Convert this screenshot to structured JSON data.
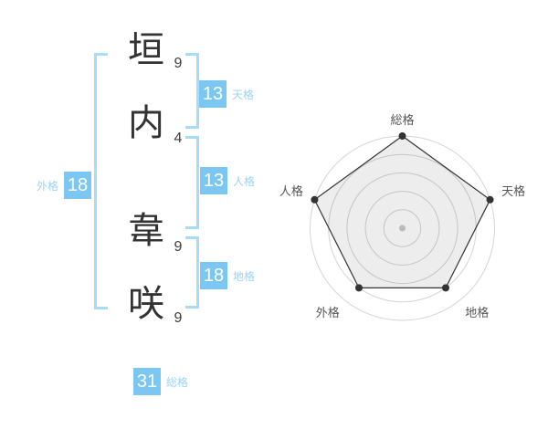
{
  "name": {
    "family": [
      {
        "char": "垣",
        "strokes": "9"
      },
      {
        "char": "内",
        "strokes": "4"
      }
    ],
    "given": [
      {
        "char": "韋",
        "strokes": "9"
      },
      {
        "char": "咲",
        "strokes": "9"
      }
    ]
  },
  "kaku": {
    "tenkaku": {
      "label": "天格",
      "value": "13"
    },
    "jinkaku": {
      "label": "人格",
      "value": "13"
    },
    "chikaku": {
      "label": "地格",
      "value": "18"
    },
    "gaikaku": {
      "label": "外格",
      "value": "18"
    },
    "soukaku": {
      "label": "総格",
      "value": "31"
    }
  },
  "colors": {
    "badge_blue": "#7cc7f1",
    "label_blue": "#9cd3f5",
    "bracket_blue": "#a8dbf8",
    "text_dark": "#333333",
    "chart_grid": "#d4d4d4",
    "chart_fill": "rgba(0,0,0,0.07)",
    "chart_line": "#333333",
    "chart_dot": "#333333",
    "chart_center_dot": "#bbbbbb",
    "chart_label": "#555555"
  },
  "chart_data": {
    "type": "radar",
    "categories": [
      "総格",
      "天格",
      "地格",
      "外格",
      "人格"
    ],
    "values": [
      5,
      5,
      4,
      4,
      5
    ],
    "max": 5,
    "rings": 5,
    "start_angle_deg": -90,
    "direction": "clockwise",
    "grid": "concentric-circles",
    "legend": false,
    "title": ""
  }
}
